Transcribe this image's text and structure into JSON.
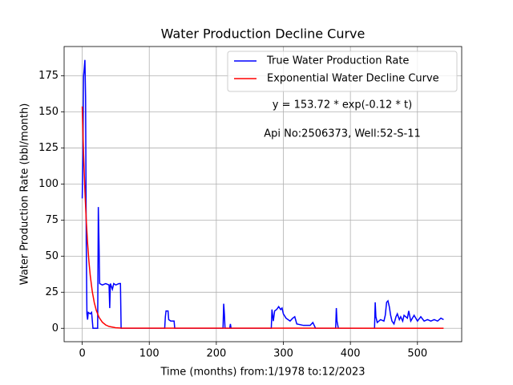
{
  "chart_data": {
    "type": "line",
    "title": "Water Production Decline Curve",
    "x_label": "Time (months) from:1/1978 to:12/2023",
    "y_label": "Water Production Rate (bbl/month)",
    "annotations": [
      "y = 153.72 * exp(-0.12 * t)",
      "Api No:2506373, Well:52-S-11"
    ],
    "xlim": [
      -27,
      566
    ],
    "ylim": [
      -9.3,
      195.3
    ],
    "xticks": [
      0,
      100,
      200,
      300,
      400,
      500
    ],
    "yticks": [
      0,
      25,
      50,
      75,
      100,
      125,
      150,
      175
    ],
    "grid": true,
    "legend": "upper right",
    "series": [
      {
        "name": "True Water Production Rate",
        "color": "#0000ff",
        "x": [
          0,
          1,
          2,
          3,
          4,
          5,
          6,
          7,
          8,
          9,
          12,
          14,
          16,
          23,
          24,
          25,
          26,
          30,
          35,
          40,
          41,
          42,
          45,
          47,
          50,
          55,
          57,
          58,
          123,
          124,
          125,
          128,
          129,
          132,
          137,
          138,
          210,
          211,
          212,
          213,
          220,
          221,
          222,
          282,
          283,
          285,
          287,
          290,
          293,
          296,
          298,
          300,
          304,
          310,
          314,
          317,
          320,
          330,
          340,
          344,
          346,
          348,
          378,
          379,
          380,
          382,
          436,
          437,
          438,
          440,
          445,
          450,
          452,
          454,
          456,
          458,
          460,
          462,
          465,
          468,
          470,
          473,
          475,
          478,
          480,
          485,
          487,
          490,
          495,
          500,
          505,
          510,
          515,
          520,
          525,
          530,
          535,
          539
        ],
        "values": [
          90,
          120,
          175,
          180,
          186,
          160,
          60,
          10,
          6,
          11,
          10,
          11,
          0,
          0,
          84,
          60,
          31,
          30,
          31,
          30,
          14,
          31,
          27,
          31,
          30,
          31,
          31,
          0,
          0,
          8,
          12,
          12,
          6,
          5,
          5,
          0,
          0,
          17,
          10,
          0,
          0,
          3,
          0,
          0,
          13,
          5,
          12,
          13,
          15,
          13,
          14,
          10,
          7,
          5,
          7,
          8,
          3,
          2,
          2,
          4,
          2,
          0,
          0,
          14,
          5,
          0,
          0,
          18,
          8,
          4,
          6,
          5,
          9,
          18,
          19,
          15,
          9,
          5,
          3,
          8,
          10,
          6,
          8,
          5,
          9,
          7,
          12,
          5,
          9,
          5,
          8,
          5,
          6,
          5,
          6,
          5,
          7,
          6
        ]
      },
      {
        "name": "Exponential Water Decline Curve",
        "color": "#ff0000",
        "x": [
          0,
          2,
          4,
          6,
          8,
          10,
          12,
          15,
          18,
          21,
          25,
          30,
          35,
          40,
          50,
          60,
          539
        ],
        "values": [
          153.72,
          120.92,
          95.12,
          74.83,
          58.86,
          46.3,
          36.42,
          25.41,
          17.73,
          12.37,
          7.65,
          4.2,
          2.3,
          1.26,
          0.38,
          0.11,
          0
        ]
      }
    ]
  }
}
